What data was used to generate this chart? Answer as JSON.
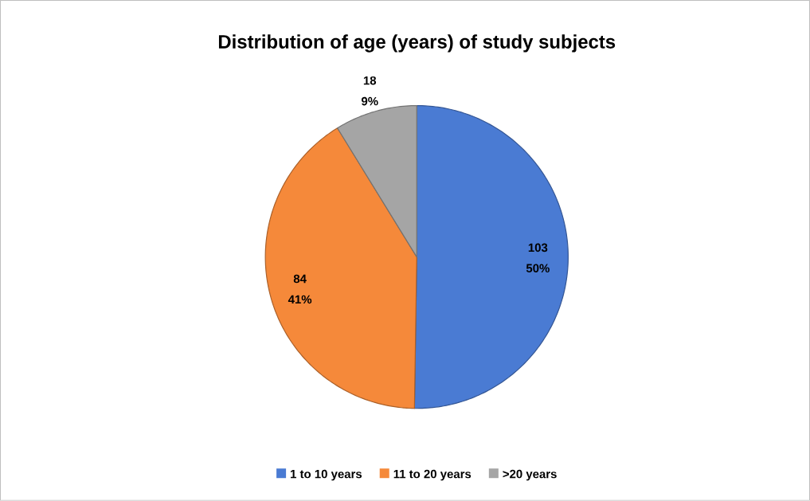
{
  "chart_data": {
    "type": "pie",
    "title": "Distribution of age (years) of study subjects",
    "categories": [
      "1 to 10 years",
      "11 to 20 years",
      ">20 years"
    ],
    "values": [
      103,
      84,
      18
    ],
    "colors": [
      "#4a7bd3",
      "#f5893a",
      "#a5a5a5"
    ],
    "value_labels": [
      "103 50%",
      "84 41%",
      "18 9%"
    ],
    "legend": "bottom"
  }
}
